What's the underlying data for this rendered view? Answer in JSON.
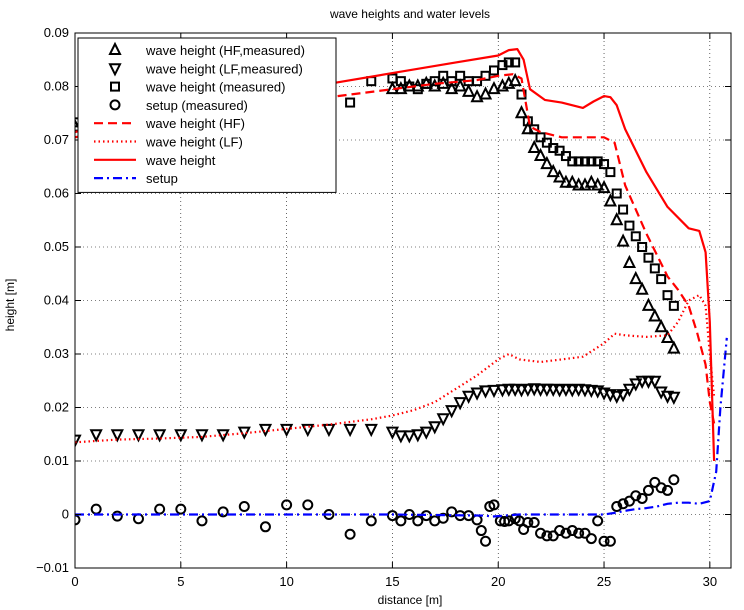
{
  "chart_data": {
    "type": "line",
    "title": "wave heights and water levels",
    "xlabel": "distance [m]",
    "ylabel": "height [m]",
    "xlim": [
      0,
      31
    ],
    "ylim": [
      -0.01,
      0.09
    ],
    "xticks": [
      0,
      5,
      10,
      15,
      20,
      25,
      30
    ],
    "yticks": [
      -0.01,
      0,
      0.01,
      0.02,
      0.03,
      0.04,
      0.05,
      0.06,
      0.07,
      0.08,
      0.09
    ],
    "xtick_labels": [
      "0",
      "5",
      "10",
      "15",
      "20",
      "25",
      "30"
    ],
    "ytick_labels": [
      "−0.01",
      "0",
      "0.01",
      "0.02",
      "0.03",
      "0.04",
      "0.05",
      "0.06",
      "0.07",
      "0.08",
      "0.09"
    ],
    "grid": true,
    "legend_position": "top-left",
    "series": [
      {
        "name": "wave height (HF,measured)",
        "kind": "markers",
        "marker": "triangle-up",
        "color": "#000000",
        "x": [
          0,
          15,
          15.4,
          15.8,
          16.2,
          16.6,
          17,
          17.4,
          17.8,
          18.2,
          18.6,
          19,
          19.4,
          19.8,
          20.2,
          20.5,
          20.8,
          21.1,
          21.4,
          21.7,
          22,
          22.3,
          22.6,
          22.9,
          23.2,
          23.5,
          23.8,
          24.1,
          24.4,
          24.7,
          25,
          25.3,
          25.6,
          25.9,
          26.2,
          26.5,
          26.8,
          27.1,
          27.4,
          27.7,
          28,
          28.3
        ],
        "y": [
          0.0725,
          0.0795,
          0.0795,
          0.08,
          0.08,
          0.0805,
          0.08,
          0.0805,
          0.0795,
          0.08,
          0.079,
          0.078,
          0.0785,
          0.0795,
          0.08,
          0.0805,
          0.081,
          0.075,
          0.072,
          0.0685,
          0.067,
          0.0655,
          0.064,
          0.063,
          0.062,
          0.062,
          0.0615,
          0.0615,
          0.062,
          0.0615,
          0.061,
          0.0585,
          0.055,
          0.051,
          0.047,
          0.044,
          0.042,
          0.039,
          0.037,
          0.035,
          0.033,
          0.031
        ]
      },
      {
        "name": "wave height (LF,measured)",
        "kind": "markers",
        "marker": "triangle-down",
        "color": "#000000",
        "x": [
          0,
          1,
          2,
          3,
          4,
          5,
          6,
          7,
          8,
          9,
          10,
          11,
          12,
          13,
          14,
          15,
          15.4,
          15.8,
          16.2,
          16.6,
          17,
          17.4,
          17.8,
          18.2,
          18.6,
          19,
          19.4,
          19.8,
          20.2,
          20.5,
          20.8,
          21.1,
          21.4,
          21.7,
          22,
          22.3,
          22.6,
          22.9,
          23.2,
          23.5,
          23.8,
          24.1,
          24.4,
          24.7,
          25,
          25.3,
          25.6,
          25.9,
          26.2,
          26.5,
          26.8,
          27.1,
          27.4,
          27.7,
          28,
          28.3
        ],
        "y": [
          0.014,
          0.015,
          0.015,
          0.015,
          0.015,
          0.015,
          0.015,
          0.015,
          0.0155,
          0.016,
          0.016,
          0.016,
          0.016,
          0.016,
          0.016,
          0.0155,
          0.0148,
          0.0148,
          0.015,
          0.0155,
          0.0165,
          0.018,
          0.0195,
          0.021,
          0.0222,
          0.0228,
          0.0232,
          0.0233,
          0.0234,
          0.0235,
          0.0235,
          0.0234,
          0.0235,
          0.0236,
          0.0235,
          0.0235,
          0.0235,
          0.0234,
          0.0235,
          0.0234,
          0.0235,
          0.0234,
          0.0233,
          0.0232,
          0.0228,
          0.0225,
          0.0222,
          0.0225,
          0.0235,
          0.0245,
          0.025,
          0.025,
          0.025,
          0.023,
          0.0222,
          0.022
        ]
      },
      {
        "name": "wave height (measured)",
        "kind": "markers",
        "marker": "square",
        "color": "#000000",
        "x": [
          0,
          11,
          12,
          13,
          14,
          15,
          15.4,
          15.8,
          16.2,
          16.6,
          17,
          17.4,
          17.8,
          18.2,
          18.6,
          19,
          19.4,
          19.8,
          20.2,
          20.5,
          20.8,
          21.1,
          21.4,
          21.7,
          22,
          22.3,
          22.6,
          22.9,
          23.2,
          23.5,
          23.8,
          24.1,
          24.4,
          24.7,
          25,
          25.3,
          25.6,
          25.9,
          26.2,
          26.5,
          26.8,
          27.1,
          27.4,
          27.7,
          28,
          28.3
        ],
        "y": [
          0.0733,
          0.0775,
          0.0785,
          0.077,
          0.081,
          0.0815,
          0.081,
          0.08,
          0.0795,
          0.0805,
          0.081,
          0.082,
          0.081,
          0.082,
          0.081,
          0.081,
          0.082,
          0.083,
          0.084,
          0.0845,
          0.0845,
          0.0785,
          0.0735,
          0.072,
          0.0705,
          0.0695,
          0.0685,
          0.068,
          0.067,
          0.066,
          0.066,
          0.066,
          0.066,
          0.066,
          0.0655,
          0.064,
          0.06,
          0.057,
          0.054,
          0.052,
          0.05,
          0.048,
          0.046,
          0.044,
          0.041,
          0.039
        ]
      },
      {
        "name": "setup (measured)",
        "kind": "markers",
        "marker": "circle",
        "color": "#000000",
        "x": [
          0,
          1,
          2,
          3,
          4,
          5,
          6,
          7,
          8,
          9,
          10,
          11,
          12,
          13,
          14,
          15,
          15.4,
          15.8,
          16.2,
          16.6,
          17,
          17.4,
          17.8,
          18.2,
          18.6,
          19,
          19.2,
          19.4,
          19.6,
          19.8,
          20.1,
          20.3,
          20.5,
          20.8,
          21,
          21.2,
          21.4,
          21.7,
          22,
          22.3,
          22.6,
          22.9,
          23.2,
          23.5,
          23.8,
          24.1,
          24.4,
          24.7,
          25,
          25.3,
          25.6,
          25.9,
          26.2,
          26.5,
          26.8,
          27.1,
          27.4,
          27.7,
          28,
          28.3
        ],
        "y": [
          -0.001,
          0.001,
          -0.0003,
          -0.0008,
          0.001,
          0.001,
          -0.0012,
          0.0005,
          0.0015,
          -0.0023,
          0.0018,
          0.0018,
          0,
          -0.0037,
          -0.0012,
          -0.0002,
          -0.0012,
          0,
          -0.0012,
          -0.0002,
          -0.0012,
          -0.0007,
          0.0005,
          -0.0002,
          -0.0002,
          -0.001,
          -0.003,
          -0.005,
          0.0015,
          0.0018,
          -0.0012,
          -0.0013,
          -0.0012,
          -0.0008,
          -0.0012,
          -0.0028,
          -0.0015,
          -0.0015,
          -0.0035,
          -0.004,
          -0.004,
          -0.003,
          -0.0035,
          -0.003,
          -0.0035,
          -0.0035,
          -0.0045,
          -0.0012,
          -0.005,
          -0.005,
          0.0015,
          0.002,
          0.0025,
          0.0035,
          0.003,
          0.0045,
          0.006,
          0.005,
          0.0045,
          0.0065
        ]
      },
      {
        "name": "wave height (HF)",
        "kind": "line",
        "style": "dashed",
        "color": "#ff0000",
        "x": [
          0,
          2,
          5,
          8,
          10,
          12,
          15,
          17,
          19,
          20,
          20.7,
          21.1,
          21.5,
          22,
          23,
          24,
          25,
          25.5,
          26,
          27,
          28,
          28.5,
          29,
          29.4,
          29.8,
          30,
          30.2
        ],
        "y": [
          0.0705,
          0.072,
          0.0745,
          0.076,
          0.077,
          0.078,
          0.0795,
          0.0805,
          0.0812,
          0.082,
          0.0823,
          0.0815,
          0.0725,
          0.0715,
          0.0705,
          0.0705,
          0.0705,
          0.0695,
          0.0615,
          0.0525,
          0.0445,
          0.042,
          0.039,
          0.034,
          0.028,
          0.021,
          0.017
        ]
      },
      {
        "name": "wave height (LF)",
        "kind": "line",
        "style": "dotted",
        "color": "#ff0000",
        "x": [
          0,
          2,
          4,
          6,
          8,
          10,
          12,
          14,
          15,
          16,
          17,
          18,
          19,
          20,
          20.5,
          21,
          22,
          23,
          24,
          25,
          25.5,
          26,
          27,
          28,
          28.5,
          29,
          29.5,
          29.8,
          30,
          30.2
        ],
        "y": [
          0.0135,
          0.014,
          0.0142,
          0.0145,
          0.0152,
          0.016,
          0.0168,
          0.0178,
          0.0185,
          0.0195,
          0.021,
          0.0235,
          0.026,
          0.029,
          0.03,
          0.029,
          0.0285,
          0.029,
          0.0295,
          0.032,
          0.0338,
          0.0335,
          0.0332,
          0.0335,
          0.036,
          0.04,
          0.041,
          0.039,
          0.03,
          0.022
        ]
      },
      {
        "name": "wave height",
        "kind": "line",
        "style": "solid",
        "color": "#ff0000",
        "x": [
          0,
          2,
          5,
          8,
          10,
          12,
          15,
          18,
          20,
          20.5,
          20.9,
          21.2,
          21.5,
          22.2,
          23,
          24,
          24.5,
          25,
          25.3,
          25.6,
          26,
          27,
          28,
          29,
          29.5,
          29.8,
          30,
          30.2
        ],
        "y": [
          0.0715,
          0.0735,
          0.076,
          0.078,
          0.0795,
          0.0805,
          0.0825,
          0.0845,
          0.0858,
          0.0868,
          0.087,
          0.085,
          0.0795,
          0.0775,
          0.077,
          0.076,
          0.0772,
          0.0782,
          0.078,
          0.0765,
          0.072,
          0.064,
          0.0575,
          0.0535,
          0.053,
          0.049,
          0.036,
          0.01
        ]
      },
      {
        "name": "setup",
        "kind": "line",
        "style": "dashdot",
        "color": "#0000ff",
        "x": [
          0,
          5,
          10,
          15,
          19.4,
          19.7,
          20,
          21,
          22,
          23,
          24,
          25,
          25.5,
          26,
          26.5,
          27,
          27.5,
          28,
          28.5,
          29,
          29.5,
          30,
          30.3,
          30.5,
          30.8
        ],
        "y": [
          0,
          0,
          0,
          0,
          -0.0002,
          -0.0004,
          -0.0003,
          0,
          0,
          0,
          0,
          0,
          0.0003,
          0.0007,
          0.001,
          0.0012,
          0.0015,
          0.002,
          0.0022,
          0.0022,
          0.002,
          0.0025,
          0.008,
          0.02,
          0.033
        ]
      }
    ]
  }
}
